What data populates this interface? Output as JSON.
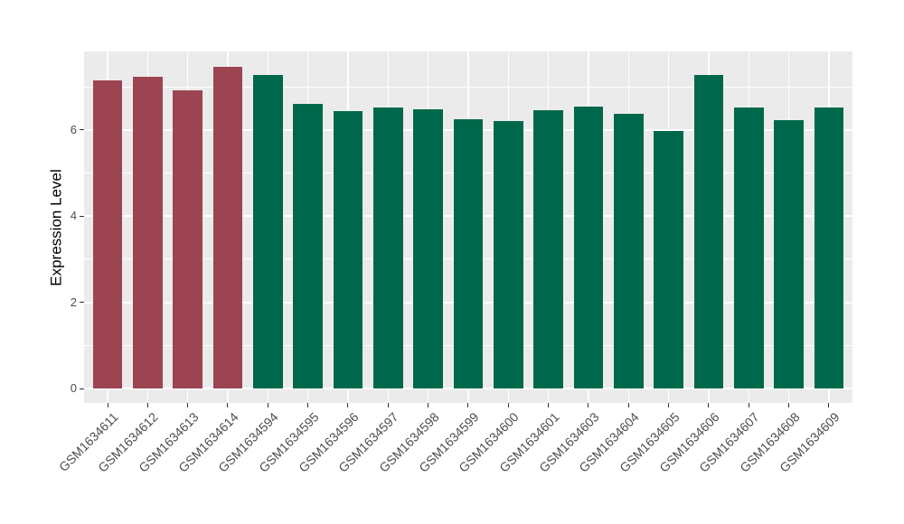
{
  "figure": {
    "background": "#FFFFFF",
    "panel_background": "#EBEBEB",
    "gridline_color": "#FFFFFF",
    "tick_mark_color": "#333333",
    "axis_text_color": "#4D4D4D",
    "axis_title_color": "#000000"
  },
  "chart_data": {
    "type": "bar",
    "title": "",
    "xlabel": "",
    "ylabel": "Expression Level",
    "categories": [
      "GSM1634611",
      "GSM1634612",
      "GSM1634613",
      "GSM1634614",
      "GSM1634594",
      "GSM1634595",
      "GSM1634596",
      "GSM1634597",
      "GSM1634598",
      "GSM1634599",
      "GSM1634600",
      "GSM1634601",
      "GSM1634603",
      "GSM1634604",
      "GSM1634605",
      "GSM1634606",
      "GSM1634607",
      "GSM1634608",
      "GSM1634609"
    ],
    "values": [
      7.16,
      7.24,
      6.93,
      7.46,
      7.27,
      6.6,
      6.44,
      6.53,
      6.49,
      6.26,
      6.21,
      6.46,
      6.54,
      6.38,
      5.98,
      7.28,
      6.53,
      6.23,
      6.53
    ],
    "bar_colors": [
      "#9D4452",
      "#9D4452",
      "#9D4452",
      "#9D4452",
      "#00684A",
      "#00684A",
      "#00684A",
      "#00684A",
      "#00684A",
      "#00684A",
      "#00684A",
      "#00684A",
      "#00684A",
      "#00684A",
      "#00684A",
      "#00684A",
      "#00684A",
      "#00684A",
      "#00684A"
    ],
    "color_groups": [
      {
        "color": "#9D4452",
        "samples": [
          "GSM1634611",
          "GSM1634612",
          "GSM1634613",
          "GSM1634614"
        ]
      },
      {
        "color": "#00684A",
        "samples": [
          "GSM1634594",
          "GSM1634595",
          "GSM1634596",
          "GSM1634597",
          "GSM1634598",
          "GSM1634599",
          "GSM1634600",
          "GSM1634601",
          "GSM1634603",
          "GSM1634604",
          "GSM1634605",
          "GSM1634606",
          "GSM1634607",
          "GSM1634608",
          "GSM1634609"
        ]
      }
    ],
    "y_major_ticks": [
      0,
      2,
      4,
      6
    ],
    "y_minor_gridlines": [
      1,
      3,
      5,
      7
    ],
    "ylim": [
      0,
      7.8
    ],
    "grid": true,
    "legend_position": "none",
    "x_tick_label_angle": 45
  }
}
